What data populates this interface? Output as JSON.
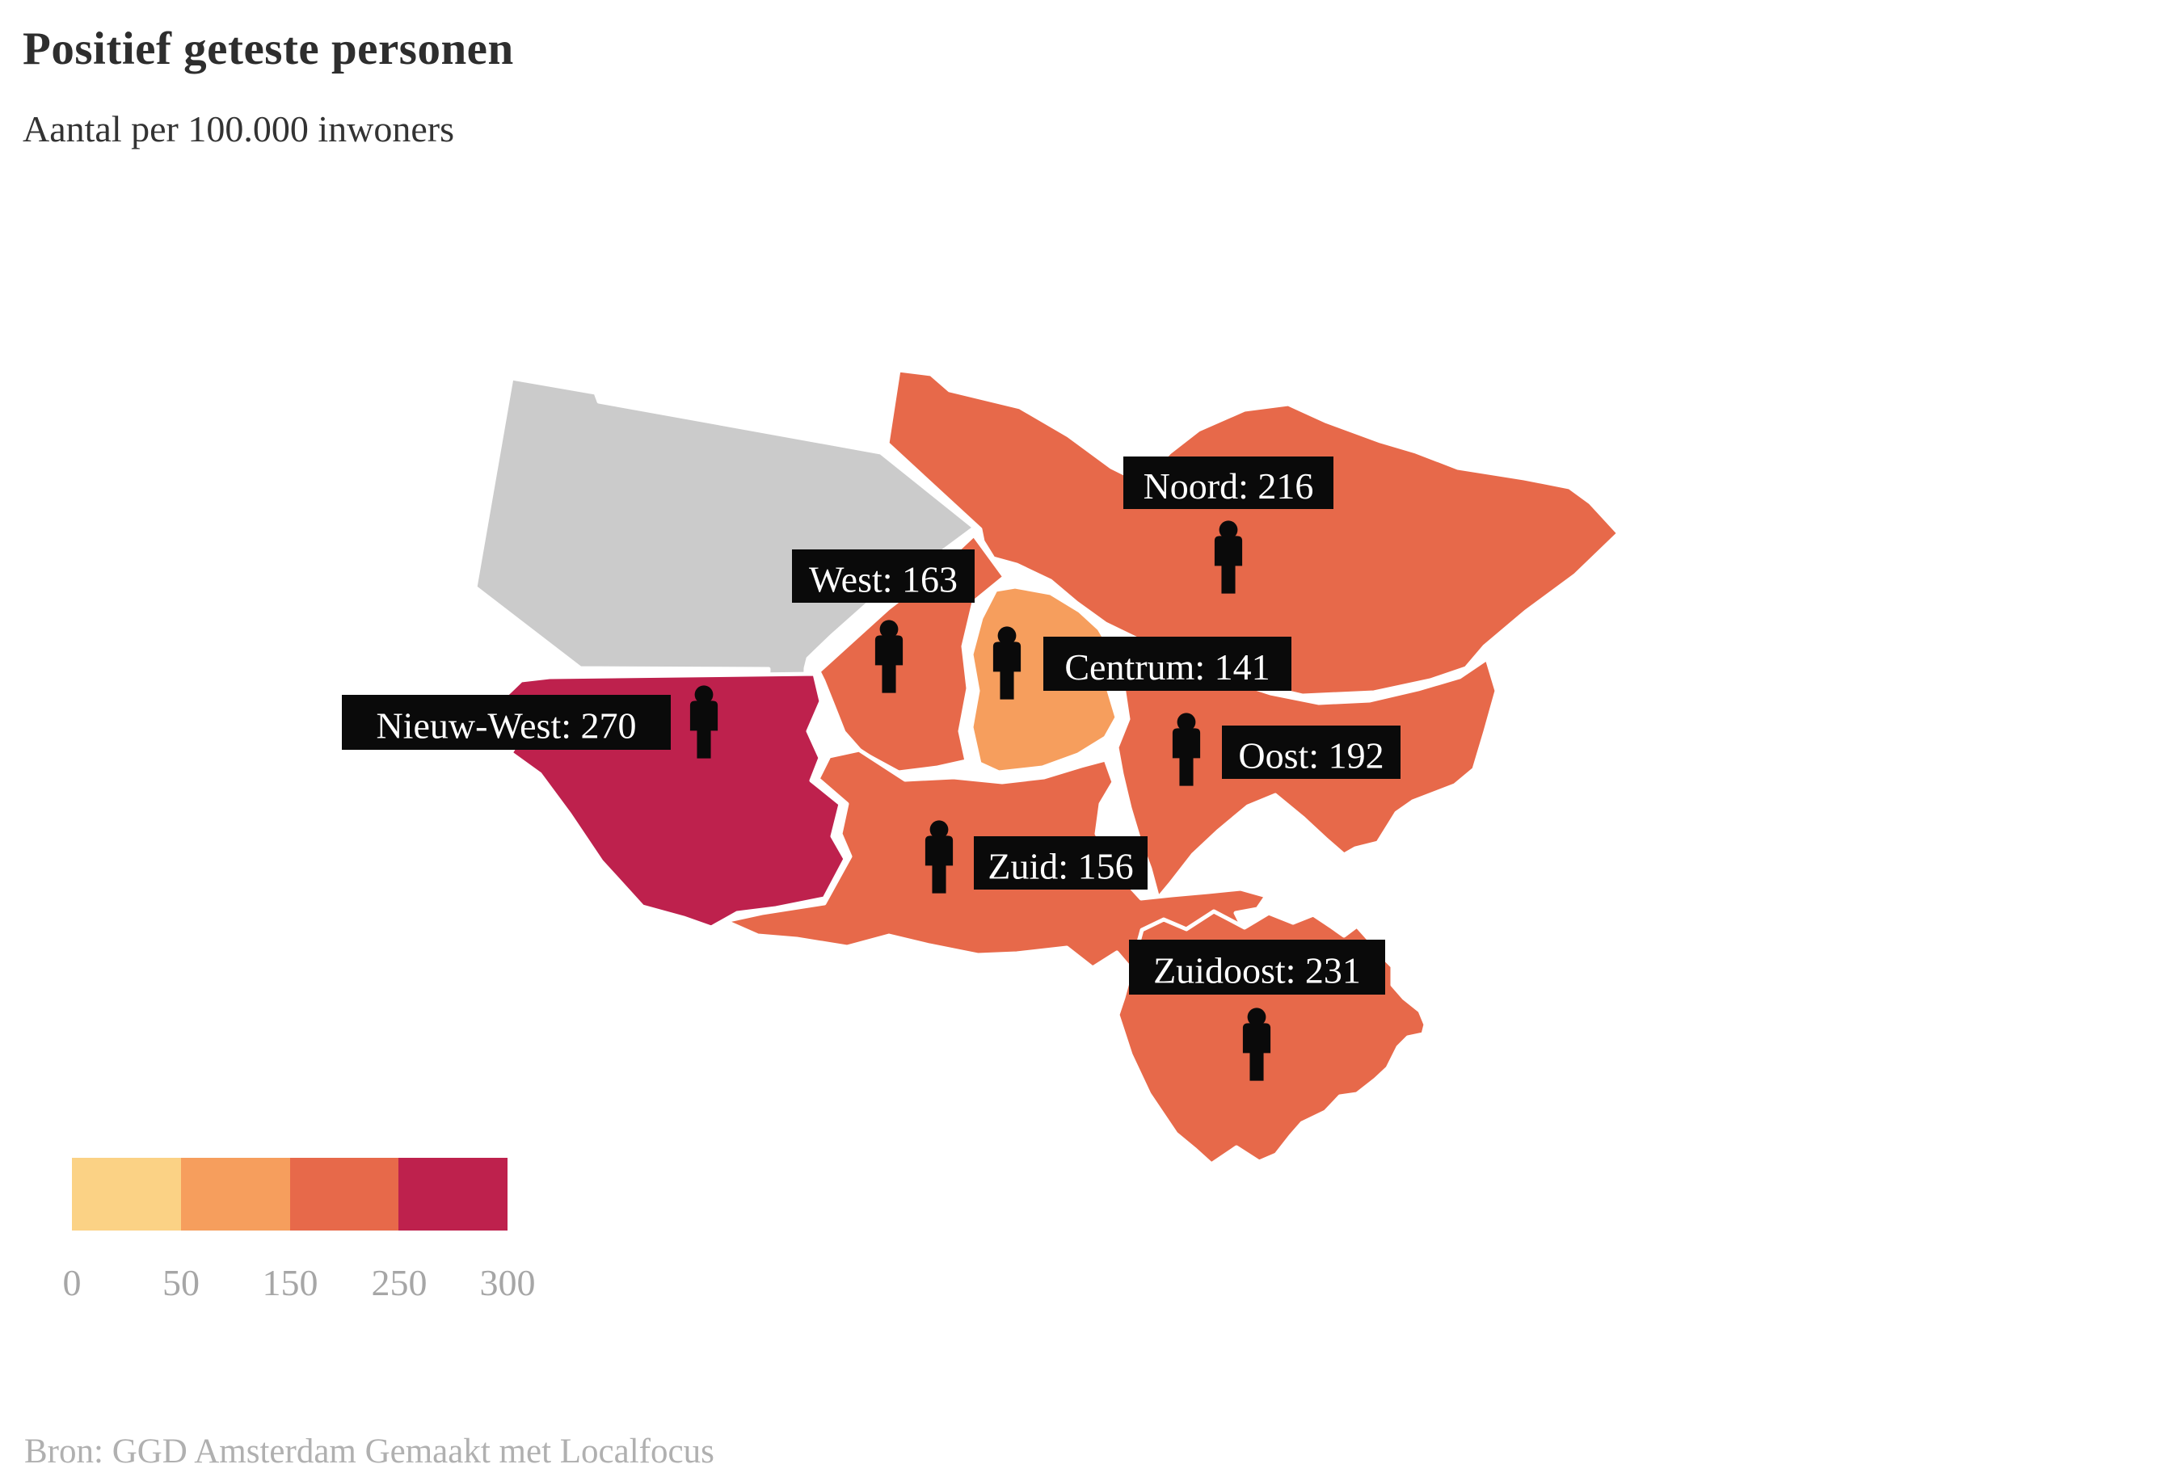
{
  "header": {
    "title": "Positief geteste personen",
    "subtitle": "Aantal per 100.000 inwoners"
  },
  "footer": {
    "source": "Bron: GGD Amsterdam Gemaakt met Localfocus"
  },
  "legend": {
    "colors": [
      "#FBD285",
      "#F69E5D",
      "#E7694A",
      "#BE214D"
    ],
    "ticks": [
      "0",
      "50",
      "150",
      "250",
      "300"
    ],
    "no_data_color": "#CBCBCB"
  },
  "map": {
    "districts": [
      {
        "id": "nodata",
        "name": null,
        "value": null,
        "label": null,
        "color": "#CBCBCB"
      },
      {
        "id": "nieuwwest",
        "name": "Nieuw-West",
        "value": 270,
        "label": "Nieuw-West: 270",
        "color": "#BE214D"
      },
      {
        "id": "west",
        "name": "West",
        "value": 163,
        "label": "West: 163",
        "color": "#E7694A"
      },
      {
        "id": "centrum",
        "name": "Centrum",
        "value": 141,
        "label": "Centrum: 141",
        "color": "#F69E5D"
      },
      {
        "id": "noord",
        "name": "Noord",
        "value": 216,
        "label": "Noord: 216",
        "color": "#E7694A"
      },
      {
        "id": "oost",
        "name": "Oost",
        "value": 192,
        "label": "Oost: 192",
        "color": "#E7694A"
      },
      {
        "id": "zuid",
        "name": "Zuid",
        "value": 156,
        "label": "Zuid: 156",
        "color": "#E7694A"
      },
      {
        "id": "zuidoost",
        "name": "Zuidoost",
        "value": 231,
        "label": "Zuidoost: 231",
        "color": "#E7694A"
      }
    ]
  },
  "chart_data": {
    "type": "heatmap",
    "subtype": "choropleth-map",
    "title": "Positief geteste personen",
    "subtitle": "Aantal per 100.000 inwoners",
    "unit": "per 100.000 inwoners",
    "categories": [
      "Noord",
      "West",
      "Centrum",
      "Nieuw-West",
      "Oost",
      "Zuid",
      "Zuidoost"
    ],
    "values": [
      216,
      163,
      141,
      270,
      192,
      156,
      231
    ],
    "color_scale": {
      "breaks": [
        0,
        50,
        150,
        250,
        300
      ],
      "colors": [
        "#FBD285",
        "#F69E5D",
        "#E7694A",
        "#BE214D"
      ],
      "no_data_color": "#CBCBCB"
    },
    "legend_position": "bottom-left",
    "source": "Bron: GGD Amsterdam Gemaakt met Localfocus"
  }
}
